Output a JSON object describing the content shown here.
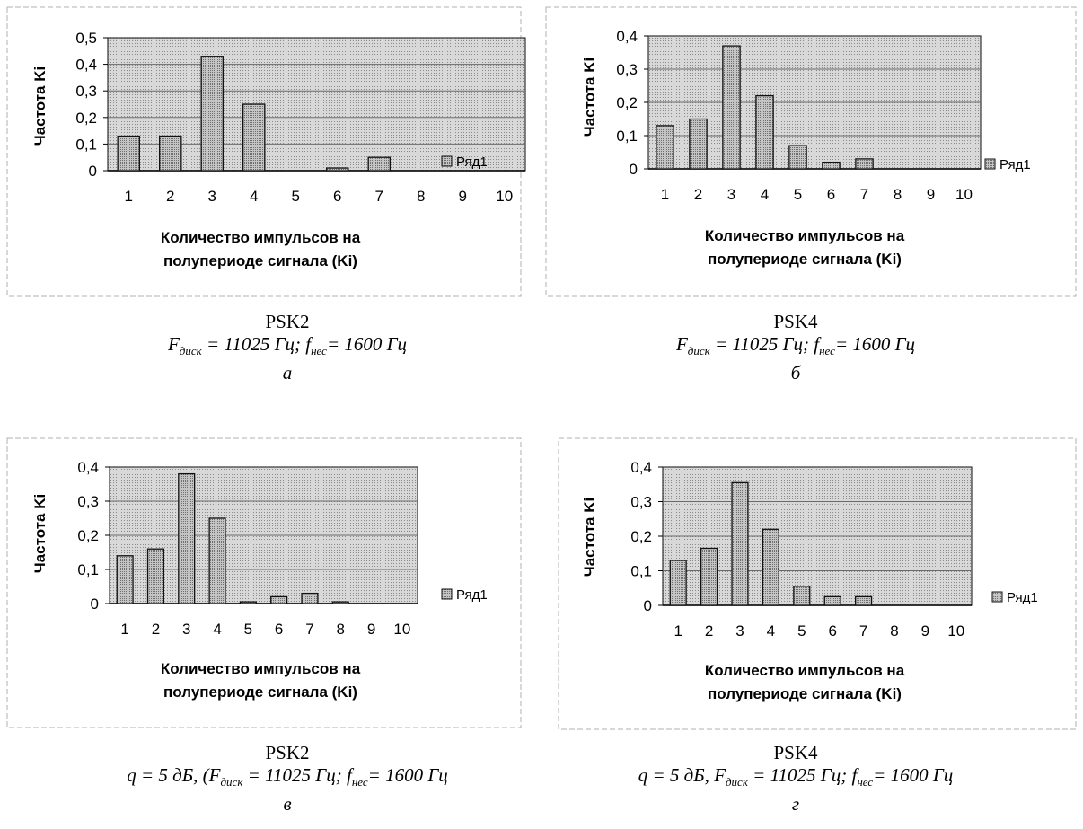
{
  "chart_data": [
    {
      "type": "bar",
      "categories": [
        "1",
        "2",
        "3",
        "4",
        "5",
        "6",
        "7",
        "8",
        "9",
        "10"
      ],
      "series": [
        {
          "name": "Ряд1",
          "values": [
            0.13,
            0.13,
            0.43,
            0.25,
            0,
            0.01,
            0.05,
            0,
            0,
            0
          ]
        }
      ],
      "ylim": [
        0,
        0.5
      ],
      "y_ticks": [
        "0",
        "0,1",
        "0,2",
        "0,3",
        "0,4",
        "0,5"
      ],
      "xlabel": "Количество импульсов на полупериоде сигнала (Ki)",
      "xlabel_lines": [
        "Количество импульсов на",
        "полупериоде сигнала (Ki)"
      ],
      "ylabel": "Частота Ki",
      "legend": "right",
      "grid": true
    },
    {
      "type": "bar",
      "categories": [
        "1",
        "2",
        "3",
        "4",
        "5",
        "6",
        "7",
        "8",
        "9",
        "10"
      ],
      "series": [
        {
          "name": "Ряд1",
          "values": [
            0.13,
            0.15,
            0.37,
            0.22,
            0.07,
            0.02,
            0.03,
            0,
            0,
            0
          ]
        }
      ],
      "ylim": [
        0,
        0.4
      ],
      "y_ticks": [
        "0",
        "0,1",
        "0,2",
        "0,3",
        "0,4"
      ],
      "xlabel": "Количество импульсов на полупериоде сигнала (Ki)",
      "xlabel_lines": [
        "Количество импульсов на",
        "полупериоде сигнала (Ki)"
      ],
      "ylabel": "Частота Ki",
      "legend": "right",
      "grid": true
    },
    {
      "type": "bar",
      "categories": [
        "1",
        "2",
        "3",
        "4",
        "5",
        "6",
        "7",
        "8",
        "9",
        "10"
      ],
      "series": [
        {
          "name": "Ряд1",
          "values": [
            0.14,
            0.16,
            0.38,
            0.25,
            0.005,
            0.02,
            0.03,
            0.005,
            0,
            0
          ]
        }
      ],
      "ylim": [
        0,
        0.4
      ],
      "y_ticks": [
        "0",
        "0,1",
        "0,2",
        "0,3",
        "0,4"
      ],
      "xlabel": "Количество импульсов на полупериоде сигнала (Ki)",
      "xlabel_lines": [
        "Количество импульсов на",
        "полупериоде сигнала (Ki)"
      ],
      "ylabel": "Частота Ki",
      "legend": "right",
      "grid": true
    },
    {
      "type": "bar",
      "categories": [
        "1",
        "2",
        "3",
        "4",
        "5",
        "6",
        "7",
        "8",
        "9",
        "10"
      ],
      "series": [
        {
          "name": "Ряд1",
          "values": [
            0.13,
            0.165,
            0.355,
            0.22,
            0.055,
            0.025,
            0.025,
            0,
            0,
            0
          ]
        }
      ],
      "ylim": [
        0,
        0.4
      ],
      "y_ticks": [
        "0",
        "0,1",
        "0,2",
        "0,3",
        "0,4"
      ],
      "xlabel": "Количество импульсов на полупериоде сигнала (Ki)",
      "xlabel_lines": [
        "Количество импульсов на",
        "полупериоде сигнала (Ki)"
      ],
      "ylabel": "Частота Ki",
      "legend": "right",
      "grid": true
    }
  ],
  "captions": [
    {
      "title": "PSK2",
      "q": "",
      "f1": "F",
      "f1_sub": "диск",
      "f1_val": " = 11025 Гц; ",
      "f2": "f",
      "f2_sub": "нес",
      "f2_val": "= 1600 Гц",
      "letter": "а"
    },
    {
      "title": "PSK4",
      "q": "",
      "f1": "F",
      "f1_sub": "диск",
      "f1_val": " = 11025 Гц; ",
      "f2": "f",
      "f2_sub": "нес",
      "f2_val": "= 1600 Гц",
      "letter": "б"
    },
    {
      "title": "PSK2",
      "q": "q = 5 дБ, (",
      "f1": "F",
      "f1_sub": "диск",
      "f1_val": " = 11025 Гц; ",
      "f2": "f",
      "f2_sub": "нес",
      "f2_val": "= 1600 Гц",
      "letter": "в"
    },
    {
      "title": "PSK4",
      "q": "q = 5 дБ, ",
      "f1": "F",
      "f1_sub": "диск",
      "f1_val": " = 11025 Гц; ",
      "f2": "f",
      "f2_sub": "нес",
      "f2_val": "= 1600 Гц",
      "letter": "г"
    }
  ],
  "colors": {
    "plot_bg": "#cfcfcf",
    "bar_fill": "#bdbdbd",
    "frame": "#333333",
    "grid": "#6a6a6a"
  }
}
